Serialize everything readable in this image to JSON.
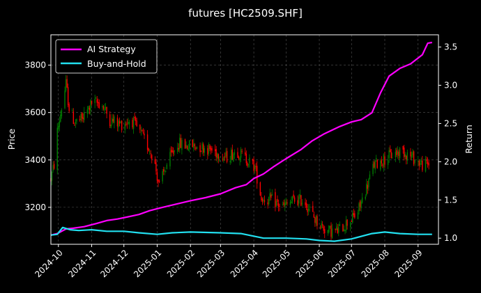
{
  "chart_data": {
    "type": "line",
    "title": "futures [HC2509.SHF]",
    "ylabel_left": "Price",
    "ylabel_right": "Return",
    "xlabel": "",
    "x_ticks": [
      "2024-10",
      "2024-11",
      "2024-12",
      "2025-01",
      "2025-02",
      "2025-03",
      "2025-04",
      "2025-05",
      "2025-06",
      "2025-07",
      "2025-08",
      "2025-09"
    ],
    "x_range": [
      "2024-09-24",
      "2025-09-20"
    ],
    "y_left_ticks": [
      3200,
      3400,
      3600,
      3800
    ],
    "y_left_range": [
      3044,
      3928
    ],
    "y_right_ticks": [
      1.0,
      1.5,
      2.0,
      2.5,
      3.0,
      3.5
    ],
    "y_right_range": [
      0.92,
      3.66
    ],
    "grid": true,
    "legend_placement": "top-left",
    "colors": {
      "background": "#000000",
      "up_candle": "#008000",
      "down_candle": "#ff0000",
      "ai_strategy": "#ff00ff",
      "buy_and_hold": "#22e0f0",
      "grid": "#555555",
      "text": "#ffffff"
    },
    "series": [
      {
        "name": "AI Strategy",
        "color": "#ff00ff",
        "points": [
          [
            "2024-09-24",
            1.04
          ],
          [
            "2024-09-30",
            1.06
          ],
          [
            "2024-10-08",
            1.12
          ],
          [
            "2024-10-15",
            1.13
          ],
          [
            "2024-10-25",
            1.15
          ],
          [
            "2024-11-05",
            1.19
          ],
          [
            "2024-11-15",
            1.23
          ],
          [
            "2024-11-25",
            1.25
          ],
          [
            "2024-12-05",
            1.28
          ],
          [
            "2024-12-15",
            1.31
          ],
          [
            "2024-12-25",
            1.36
          ],
          [
            "2025-01-05",
            1.4
          ],
          [
            "2025-01-20",
            1.45
          ],
          [
            "2025-02-01",
            1.49
          ],
          [
            "2025-02-15",
            1.53
          ],
          [
            "2025-03-01",
            1.58
          ],
          [
            "2025-03-15",
            1.66
          ],
          [
            "2025-03-25",
            1.7
          ],
          [
            "2025-04-01",
            1.78
          ],
          [
            "2025-04-10",
            1.84
          ],
          [
            "2025-04-20",
            1.94
          ],
          [
            "2025-05-01",
            2.04
          ],
          [
            "2025-05-15",
            2.16
          ],
          [
            "2025-05-25",
            2.27
          ],
          [
            "2025-06-05",
            2.36
          ],
          [
            "2025-06-20",
            2.46
          ],
          [
            "2025-07-01",
            2.52
          ],
          [
            "2025-07-10",
            2.55
          ],
          [
            "2025-07-20",
            2.64
          ],
          [
            "2025-07-28",
            2.9
          ],
          [
            "2025-08-05",
            3.12
          ],
          [
            "2025-08-15",
            3.22
          ],
          [
            "2025-08-25",
            3.28
          ],
          [
            "2025-09-05",
            3.4
          ],
          [
            "2025-09-10",
            3.55
          ],
          [
            "2025-09-14",
            3.56
          ]
        ]
      },
      {
        "name": "Buy-and-Hold",
        "color": "#22e0f0",
        "points": [
          [
            "2024-09-24",
            1.04
          ],
          [
            "2024-09-30",
            1.05
          ],
          [
            "2024-10-05",
            1.14
          ],
          [
            "2024-10-12",
            1.11
          ],
          [
            "2024-10-20",
            1.1
          ],
          [
            "2024-11-01",
            1.11
          ],
          [
            "2024-11-15",
            1.09
          ],
          [
            "2024-12-01",
            1.09
          ],
          [
            "2024-12-15",
            1.07
          ],
          [
            "2025-01-01",
            1.05
          ],
          [
            "2025-01-15",
            1.07
          ],
          [
            "2025-02-01",
            1.08
          ],
          [
            "2025-03-01",
            1.07
          ],
          [
            "2025-03-20",
            1.06
          ],
          [
            "2025-04-10",
            1.0
          ],
          [
            "2025-05-01",
            1.0
          ],
          [
            "2025-05-20",
            0.99
          ],
          [
            "2025-06-01",
            0.97
          ],
          [
            "2025-06-15",
            0.96
          ],
          [
            "2025-07-01",
            0.99
          ],
          [
            "2025-07-20",
            1.06
          ],
          [
            "2025-08-01",
            1.08
          ],
          [
            "2025-08-15",
            1.06
          ],
          [
            "2025-09-01",
            1.05
          ],
          [
            "2025-09-14",
            1.05
          ]
        ]
      }
    ],
    "candles": {
      "name": "HC2509.SHF",
      "anchors": [
        [
          "2024-09-24",
          3320
        ],
        [
          "2024-09-27",
          3380
        ],
        [
          "2024-09-30",
          3520
        ],
        [
          "2024-10-08",
          3720
        ],
        [
          "2024-10-11",
          3620
        ],
        [
          "2024-10-16",
          3560
        ],
        [
          "2024-10-23",
          3570
        ],
        [
          "2024-11-01",
          3640
        ],
        [
          "2024-11-10",
          3640
        ],
        [
          "2024-11-18",
          3570
        ],
        [
          "2024-11-28",
          3550
        ],
        [
          "2024-12-08",
          3570
        ],
        [
          "2024-12-18",
          3500
        ],
        [
          "2024-12-28",
          3420
        ],
        [
          "2025-01-03",
          3290
        ],
        [
          "2025-01-10",
          3380
        ],
        [
          "2025-01-20",
          3470
        ],
        [
          "2025-01-28",
          3460
        ],
        [
          "2025-02-06",
          3460
        ],
        [
          "2025-02-16",
          3450
        ],
        [
          "2025-02-26",
          3430
        ],
        [
          "2025-03-06",
          3410
        ],
        [
          "2025-03-16",
          3440
        ],
        [
          "2025-03-26",
          3400
        ],
        [
          "2025-04-02",
          3370
        ],
        [
          "2025-04-08",
          3240
        ],
        [
          "2025-04-18",
          3230
        ],
        [
          "2025-04-28",
          3200
        ],
        [
          "2025-05-08",
          3230
        ],
        [
          "2025-05-18",
          3230
        ],
        [
          "2025-05-28",
          3150
        ],
        [
          "2025-06-08",
          3100
        ],
        [
          "2025-06-18",
          3100
        ],
        [
          "2025-06-28",
          3140
        ],
        [
          "2025-07-06",
          3170
        ],
        [
          "2025-07-14",
          3270
        ],
        [
          "2025-07-22",
          3380
        ],
        [
          "2025-07-30",
          3400
        ],
        [
          "2025-08-07",
          3420
        ],
        [
          "2025-08-17",
          3440
        ],
        [
          "2025-08-27",
          3410
        ],
        [
          "2025-09-05",
          3380
        ],
        [
          "2025-09-11",
          3380
        ]
      ]
    }
  }
}
